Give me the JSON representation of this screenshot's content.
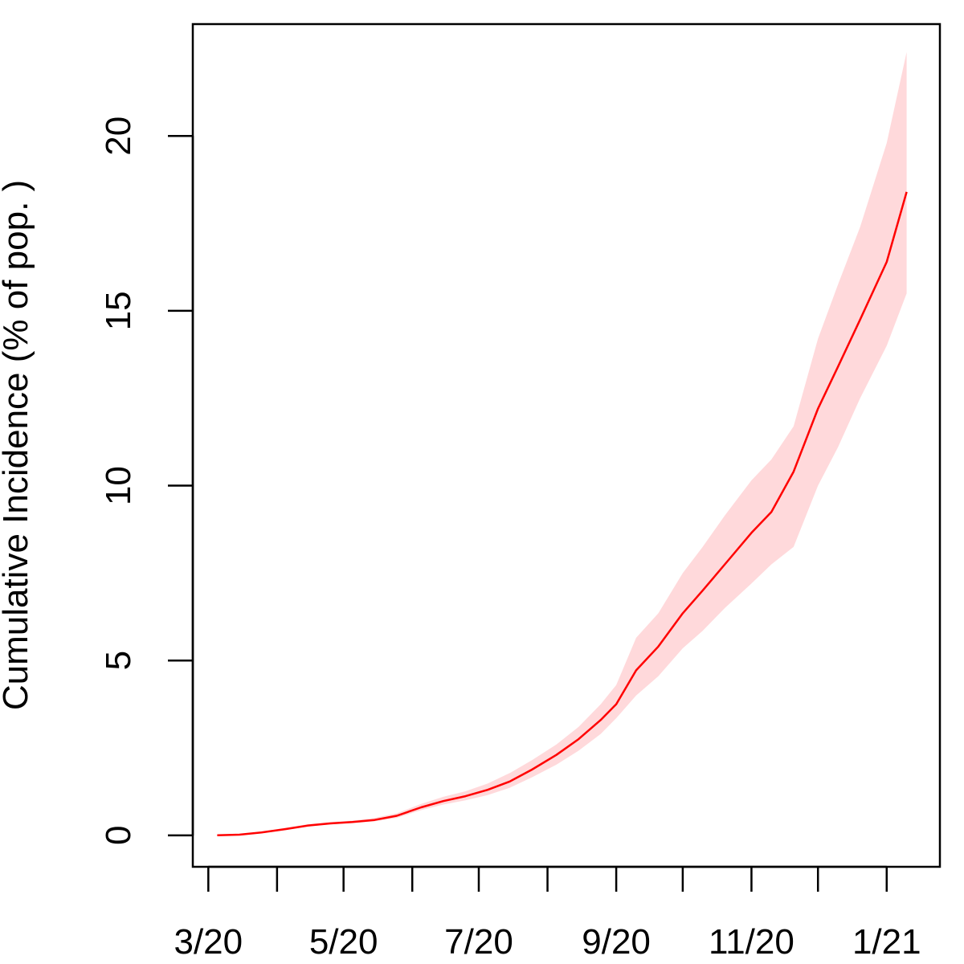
{
  "chart_data": {
    "type": "line",
    "title": "",
    "xlabel": "",
    "ylabel": "Cumulative Incidence (% of pop. )",
    "x_axis": {
      "kind": "date",
      "tick_dates": [
        "2020-03-01",
        "2020-04-01",
        "2020-05-01",
        "2020-06-01",
        "2020-07-01",
        "2020-08-01",
        "2020-09-01",
        "2020-10-01",
        "2020-11-01",
        "2020-12-01",
        "2021-01-01"
      ],
      "tick_labels": [
        "3/20",
        "",
        "5/20",
        "",
        "7/20",
        "",
        "9/20",
        "",
        "11/20",
        "",
        "1/21"
      ],
      "range": [
        "2020-02-23",
        "2021-01-25"
      ]
    },
    "ylim": [
      -0.9,
      23.2
    ],
    "y_ticks": [
      0,
      5,
      10,
      15,
      20
    ],
    "grid": false,
    "colors": {
      "line": "#ff0000",
      "band": "#ffd9db"
    },
    "series": [
      {
        "x": [
          "2020-03-05",
          "2020-03-15",
          "2020-03-25",
          "2020-04-05",
          "2020-04-15",
          "2020-04-25",
          "2020-05-05",
          "2020-05-15",
          "2020-05-25",
          "2020-06-05",
          "2020-06-15",
          "2020-06-25",
          "2020-07-05",
          "2020-07-15",
          "2020-07-25",
          "2020-08-05",
          "2020-08-15",
          "2020-08-25",
          "2020-09-01",
          "2020-09-10",
          "2020-09-20",
          "2020-10-01",
          "2020-10-10",
          "2020-10-20",
          "2020-11-01",
          "2020-11-10",
          "2020-11-20",
          "2020-12-01",
          "2020-12-10",
          "2020-12-20",
          "2021-01-01",
          "2021-01-10"
        ],
        "y": [
          0.0,
          0.02,
          0.08,
          0.18,
          0.28,
          0.34,
          0.38,
          0.44,
          0.56,
          0.8,
          0.98,
          1.12,
          1.3,
          1.54,
          1.88,
          2.3,
          2.75,
          3.3,
          3.75,
          4.72,
          5.4,
          6.35,
          7.0,
          7.75,
          8.65,
          9.25,
          10.4,
          12.2,
          13.4,
          14.75,
          16.4,
          18.4
        ],
        "lower": [
          0.0,
          0.01,
          0.06,
          0.15,
          0.25,
          0.31,
          0.35,
          0.4,
          0.5,
          0.72,
          0.88,
          1.0,
          1.15,
          1.36,
          1.66,
          2.02,
          2.42,
          2.9,
          3.35,
          4.0,
          4.55,
          5.35,
          5.85,
          6.5,
          7.2,
          7.75,
          8.25,
          10.0,
          11.1,
          12.5,
          14.0,
          15.5
        ],
        "upper": [
          0.0,
          0.03,
          0.1,
          0.22,
          0.32,
          0.38,
          0.42,
          0.5,
          0.63,
          0.9,
          1.1,
          1.26,
          1.48,
          1.78,
          2.15,
          2.6,
          3.1,
          3.75,
          4.3,
          5.65,
          6.35,
          7.5,
          8.25,
          9.15,
          10.15,
          10.75,
          11.7,
          14.2,
          15.75,
          17.4,
          19.8,
          22.4
        ]
      }
    ]
  }
}
